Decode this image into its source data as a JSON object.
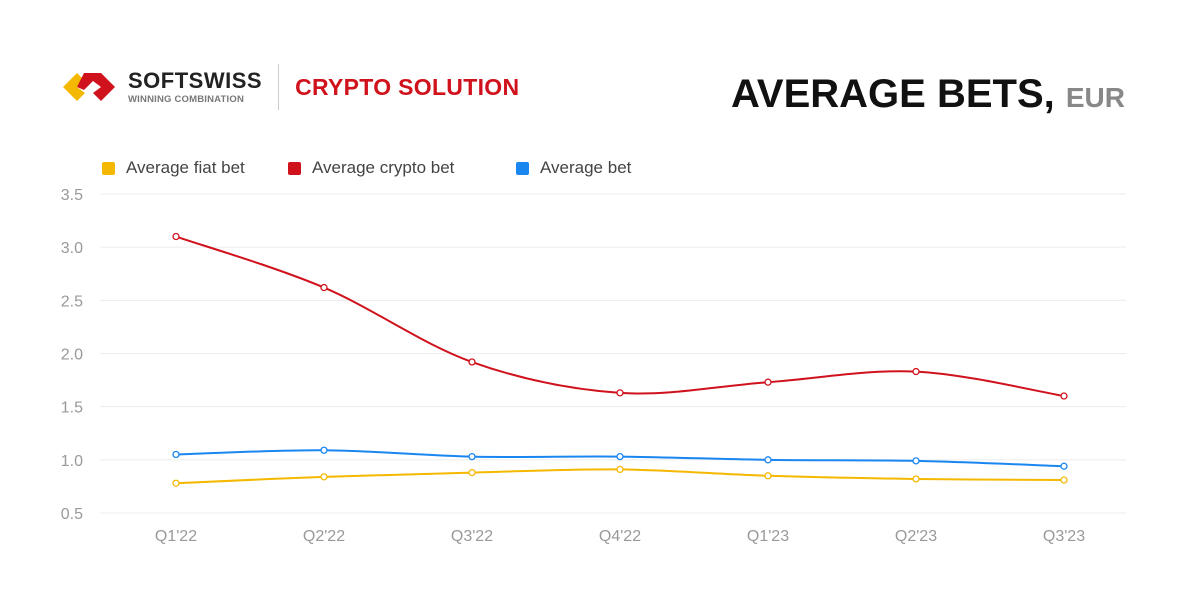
{
  "header": {
    "brand": "SOFTSWISS",
    "tagline": "WINNING COMBINATION",
    "product": "CRYPTO SOLUTION",
    "title": "AVERAGE BETS,",
    "unit": "EUR"
  },
  "chart_data": {
    "type": "line",
    "title": "AVERAGE BETS, EUR",
    "categories": [
      "Q1'22",
      "Q2'22",
      "Q3'22",
      "Q4'22",
      "Q1'23",
      "Q2'23",
      "Q3'23"
    ],
    "ylim": [
      0.5,
      3.5
    ],
    "yticks": [
      "0.5",
      "1.0",
      "1.5",
      "2.0",
      "2.5",
      "3.0",
      "3.5"
    ],
    "grid": true,
    "legend": "top-left",
    "series": [
      {
        "name": "Average fiat bet",
        "color": "#f5b800",
        "values": [
          0.78,
          0.84,
          0.88,
          0.91,
          0.85,
          0.82,
          0.81
        ]
      },
      {
        "name": "Average crypto bet",
        "color": "#d0121d",
        "values": [
          3.1,
          2.62,
          1.92,
          1.63,
          1.73,
          1.83,
          1.6
        ]
      },
      {
        "name": "Average bet",
        "color": "#1a86f0",
        "values": [
          1.05,
          1.09,
          1.03,
          1.03,
          1.0,
          0.99,
          0.94
        ]
      }
    ]
  }
}
